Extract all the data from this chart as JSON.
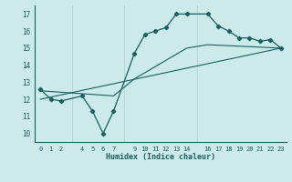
{
  "xlabel": "Humidex (Indice chaleur)",
  "bg_color": "#cceaea",
  "grid_color": "#aacccc",
  "line_color": "#1a5f5f",
  "xlim": [
    -0.5,
    23.5
  ],
  "ylim": [
    9.5,
    17.5
  ],
  "yticks": [
    10,
    11,
    12,
    13,
    14,
    15,
    16,
    17
  ],
  "xticks": [
    0,
    1,
    2,
    4,
    5,
    6,
    7,
    9,
    10,
    11,
    12,
    13,
    14,
    16,
    17,
    18,
    19,
    20,
    21,
    22,
    23
  ],
  "line1_x": [
    0,
    1,
    2,
    4,
    5,
    6,
    7,
    9,
    10,
    11,
    12,
    13,
    14,
    16,
    17,
    18,
    19,
    20,
    21,
    22,
    23
  ],
  "line1_y": [
    12.6,
    12.0,
    11.9,
    12.2,
    11.3,
    10.0,
    11.3,
    14.7,
    15.8,
    16.0,
    16.2,
    17.0,
    17.0,
    17.0,
    16.3,
    16.0,
    15.6,
    15.6,
    15.4,
    15.5,
    15.0
  ],
  "line2_x": [
    0,
    7,
    9,
    14,
    16,
    23
  ],
  "line2_y": [
    12.5,
    12.2,
    13.2,
    15.0,
    15.2,
    15.0
  ],
  "line3_x": [
    0,
    23
  ],
  "line3_y": [
    12.0,
    15.0
  ]
}
